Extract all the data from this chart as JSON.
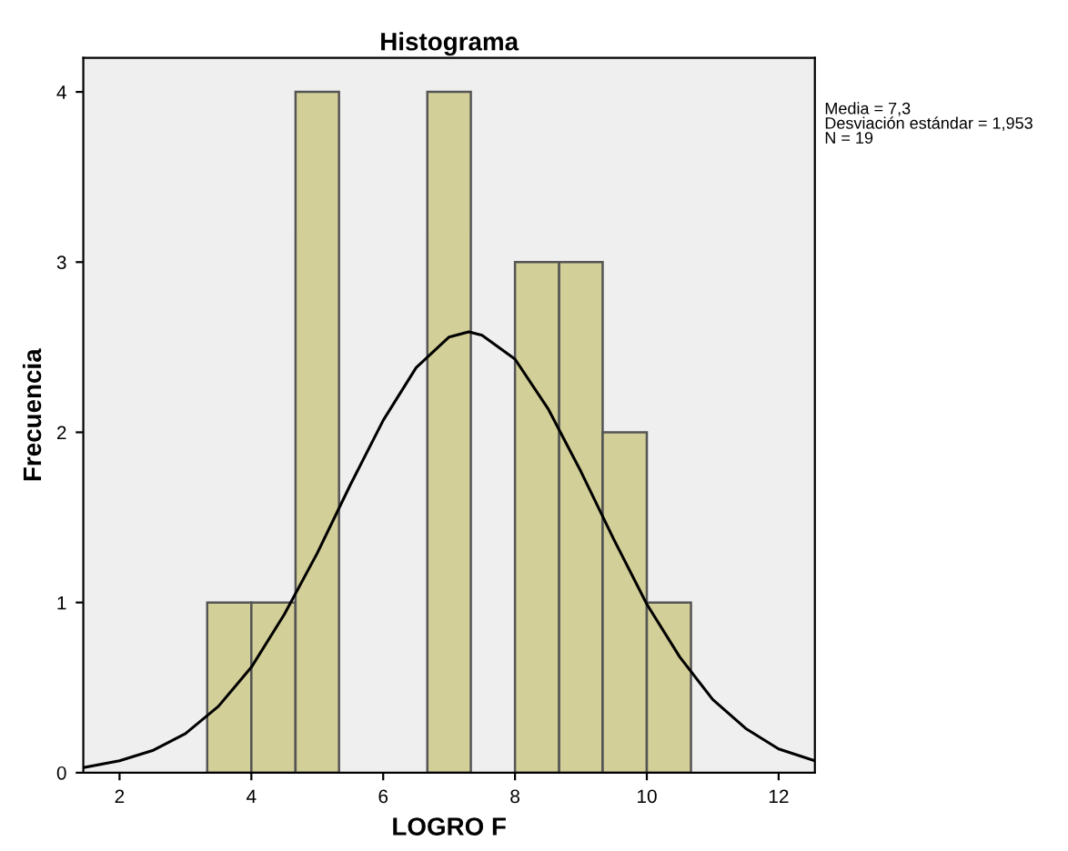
{
  "chart_data": {
    "type": "histogram",
    "title": "Histograma",
    "xlabel": "LOGRO F",
    "ylabel": "Frecuencia",
    "series": [
      {
        "color": "#d3cf98",
        "bins": [
          3.33,
          4.0,
          4.67,
          5.33,
          6.67,
          7.33,
          8.0,
          8.67,
          9.33,
          10.0,
          10.67
        ],
        "values": [
          1,
          1,
          4,
          0,
          4,
          0,
          3,
          3,
          2,
          1
        ]
      },
      {
        "type": "line",
        "color": "#000000",
        "x": [
          1.45,
          2,
          2.5,
          3,
          3.5,
          4,
          4.5,
          5,
          5.5,
          6,
          6.5,
          7,
          7.3,
          7.5,
          8,
          8.5,
          9,
          9.5,
          10,
          10.5,
          11,
          11.5,
          12,
          12.55
        ],
        "values": [
          0.03,
          0.07,
          0.13,
          0.23,
          0.39,
          0.62,
          0.93,
          1.29,
          1.69,
          2.07,
          2.38,
          2.56,
          2.59,
          2.57,
          2.43,
          2.14,
          1.77,
          1.37,
          0.99,
          0.68,
          0.43,
          0.26,
          0.14,
          0.07
        ]
      }
    ],
    "xlim": [
      1.45,
      12.55
    ],
    "ylim": [
      0,
      4.2
    ],
    "xticks": [
      2,
      4,
      6,
      8,
      10,
      12
    ],
    "yticks": [
      0,
      1,
      2,
      3,
      4
    ],
    "grid": false,
    "legend": false,
    "marker": "none",
    "line_style": "solid",
    "annotations": [
      "Media = 7,3\nDesviación estándar = 1,953\nN = 19"
    ]
  }
}
